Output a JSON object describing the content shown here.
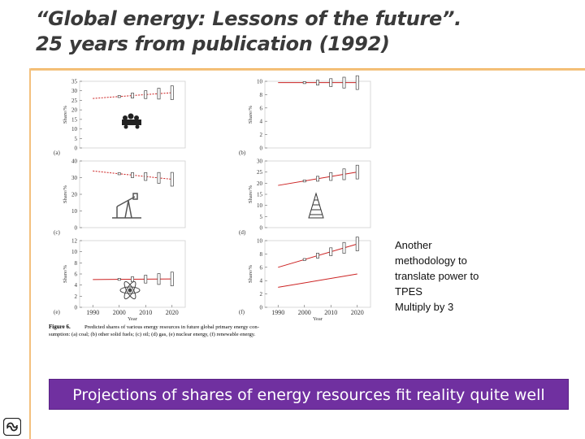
{
  "slide": {
    "title_line1": "“Global energy: Lessons of the future”.",
    "title_line2": "25 years from publication (1992)",
    "note_lines": [
      "Another",
      "methodology to",
      "translate power to",
      "TPES",
      "Multiply by 3"
    ],
    "banner": "Projections of shares of energy resources fit reality quite well"
  },
  "colors": {
    "accent_orange": "#f0a848",
    "banner_purple": "#7030a0",
    "trend_red": "#cc2222"
  },
  "figure": {
    "caption_lead": "Figure 6.",
    "caption_line1": "Predicted shares of various energy resources in future global primary energy con-",
    "caption_line2": "sumption: (a) coal; (b) other solid fuels; (c) oil; (d) gas, (e) nuclear energy, (f) renewable energy.",
    "x_label": "Year",
    "y_label": "Share/%"
  },
  "chart_data": [
    {
      "type": "line",
      "id": "a",
      "title": "(a) coal",
      "x": [
        1990,
        2020
      ],
      "trend": [
        26,
        29
      ],
      "ylim": [
        0,
        35
      ],
      "yticks": [
        "35",
        "30",
        "25",
        "20",
        "15",
        "10",
        "5",
        "0"
      ],
      "xticks": [],
      "ylabel": "Share/%",
      "xlabel": ""
    },
    {
      "type": "line",
      "id": "b",
      "title": "(b) other solid fuels",
      "x": [
        1990,
        2020
      ],
      "trend": [
        9.8,
        9.8
      ],
      "ylim": [
        0,
        10
      ],
      "yticks": [
        "10",
        "8",
        "6",
        "4",
        "2",
        "0"
      ],
      "xticks": [],
      "ylabel": "Share/%",
      "xlabel": ""
    },
    {
      "type": "line",
      "id": "c",
      "title": "(c) oil",
      "x": [
        1990,
        2020
      ],
      "trend": [
        34,
        29
      ],
      "ylim": [
        0,
        40
      ],
      "yticks": [
        "40",
        "30",
        "20",
        "10",
        "0"
      ],
      "xticks": [],
      "ylabel": "Share/%",
      "xlabel": ""
    },
    {
      "type": "line",
      "id": "d",
      "title": "(d) gas",
      "x": [
        1990,
        2020
      ],
      "trend": [
        19,
        25
      ],
      "ylim": [
        0,
        30
      ],
      "yticks": [
        "30",
        "25",
        "20",
        "15",
        "10",
        "5",
        "0"
      ],
      "xticks": [],
      "ylabel": "Share/%",
      "xlabel": ""
    },
    {
      "type": "line",
      "id": "e",
      "title": "(e) nuclear energy",
      "x": [
        1990,
        2020
      ],
      "trend": [
        5,
        5.1
      ],
      "ylim": [
        0,
        12
      ],
      "yticks": [
        "12",
        "10",
        "8",
        "6",
        "4",
        "2",
        "0"
      ],
      "xticks": [
        "1990",
        "2000",
        "2010",
        "2020"
      ],
      "ylabel": "Share/%",
      "xlabel": "Year"
    },
    {
      "type": "line",
      "id": "f",
      "title": "(f) renewable energy",
      "x": [
        1990,
        2020
      ],
      "trend": [
        6,
        9.5
      ],
      "trend2": [
        3,
        5
      ],
      "ylim": [
        0,
        10
      ],
      "yticks": [
        "10",
        "8",
        "6",
        "4",
        "2",
        "0"
      ],
      "xticks": [
        "1990",
        "2000",
        "2010",
        "2020"
      ],
      "ylabel": "Share/%",
      "xlabel": "Year"
    }
  ]
}
